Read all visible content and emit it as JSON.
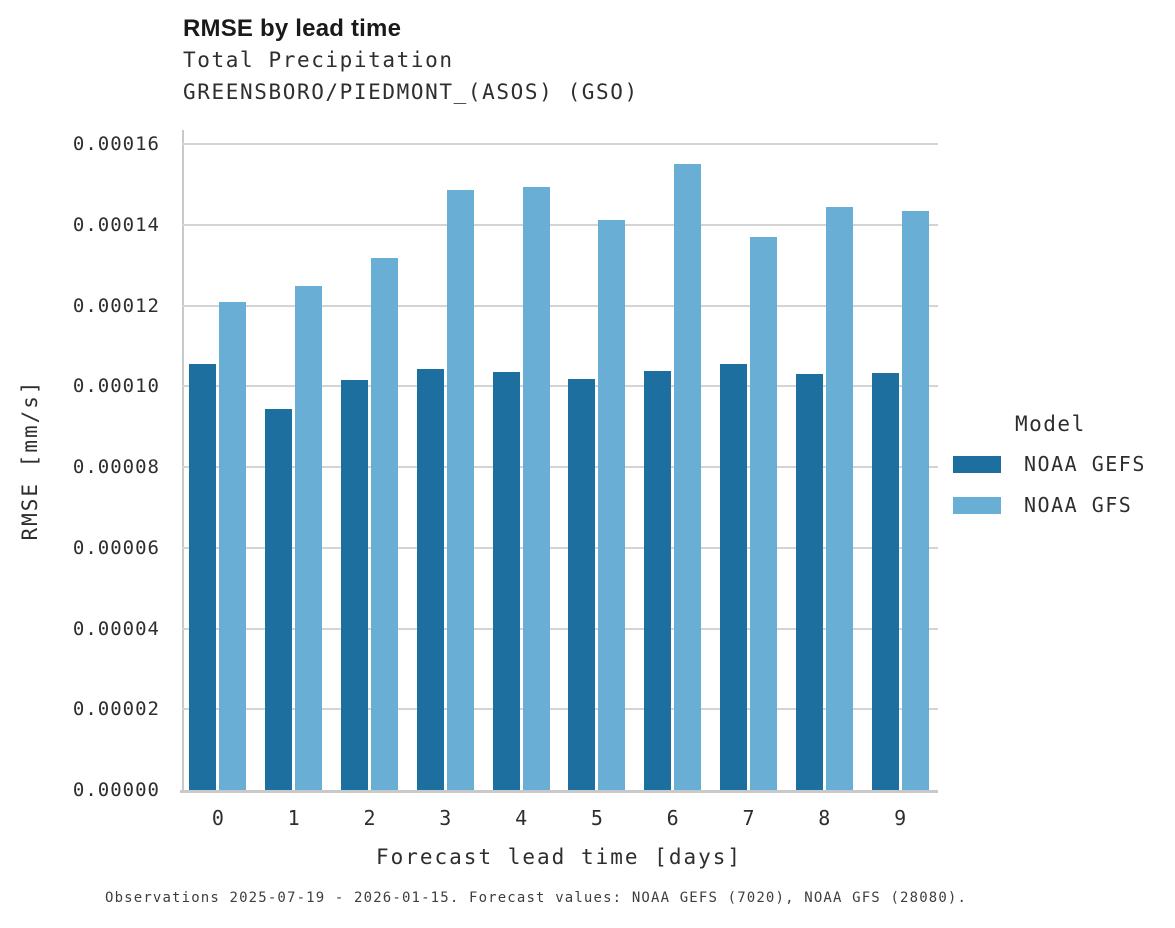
{
  "chart_data": {
    "type": "bar",
    "title": "RMSE by lead time",
    "subtitle": [
      "Total Precipitation",
      "GREENSBORO/PIEDMONT_(ASOS) (GSO)"
    ],
    "xlabel": "Forecast lead time [days]",
    "ylabel": "RMSE [mm/s]",
    "legend_title": "Model",
    "legend_position": "right",
    "grid": true,
    "ylim": [
      0,
      0.000164
    ],
    "yticks": [
      "0.00000",
      "0.00002",
      "0.00004",
      "0.00006",
      "0.00008",
      "0.00010",
      "0.00012",
      "0.00014",
      "0.00016"
    ],
    "categories": [
      "0",
      "1",
      "2",
      "3",
      "4",
      "5",
      "6",
      "7",
      "8",
      "9"
    ],
    "series": [
      {
        "name": "NOAA GEFS",
        "color": "#1d6f9f",
        "values": [
          0.0001055,
          9.45e-05,
          0.0001016,
          0.0001043,
          0.0001036,
          0.0001018,
          0.0001039,
          0.0001056,
          0.0001031,
          0.0001034
        ]
      },
      {
        "name": "NOAA GFS",
        "color": "#68aed5",
        "values": [
          0.000121,
          0.0001249,
          0.0001318,
          0.0001487,
          0.0001493,
          0.0001412,
          0.0001551,
          0.0001369,
          0.0001444,
          0.0001435
        ]
      }
    ],
    "caption": "Observations 2025-07-19 - 2026-01-15. Forecast values: NOAA GEFS (7020), NOAA GFS (28080)."
  },
  "style": {
    "grid_color": "#d4d4d4",
    "axis_color": "#c9c9c9",
    "title_color": "#1a1a1a",
    "text_color": "#2e2e2e"
  }
}
